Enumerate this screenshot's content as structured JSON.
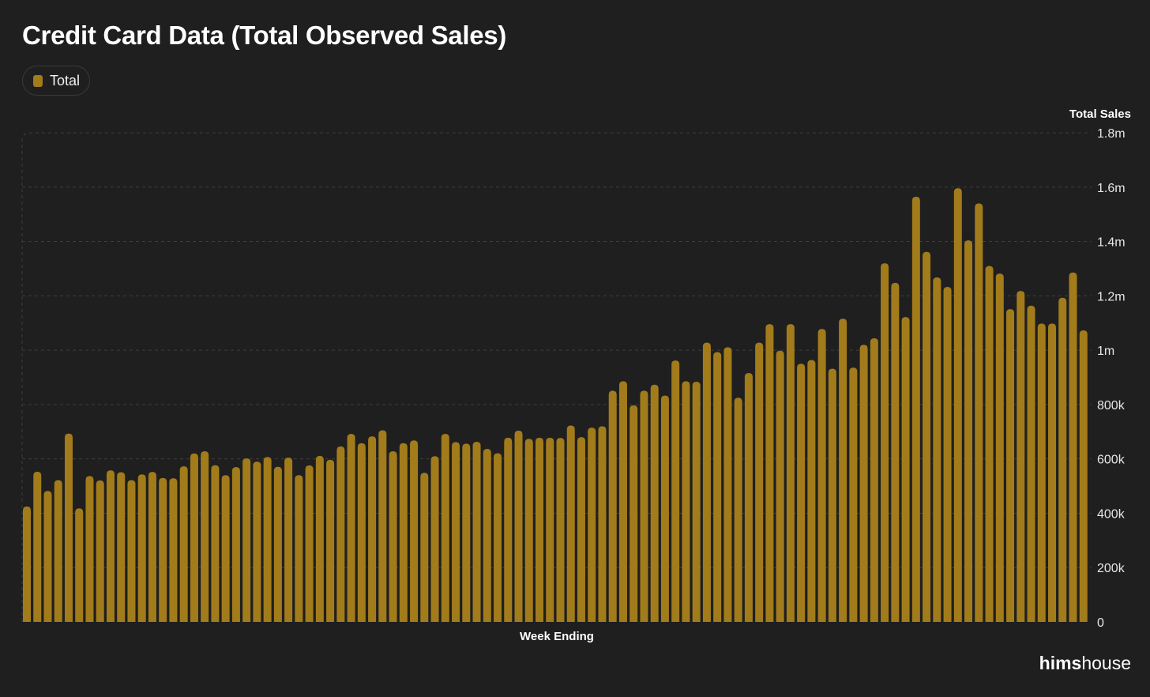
{
  "title": "Credit Card Data (Total Observed Sales)",
  "legend": [
    {
      "label": "Total",
      "color": "#a27b1b"
    }
  ],
  "brand": {
    "bold": "hims",
    "light": "house"
  },
  "chart_data": {
    "type": "bar",
    "title": "Credit Card Data (Total Observed Sales)",
    "xlabel": "Week Ending",
    "ylabel": "Total Sales",
    "ylim": [
      0,
      1800000
    ],
    "y_ticks": [
      {
        "value": 0,
        "label": "0"
      },
      {
        "value": 200000,
        "label": "200k"
      },
      {
        "value": 400000,
        "label": "400k"
      },
      {
        "value": 600000,
        "label": "600k"
      },
      {
        "value": 800000,
        "label": "800k"
      },
      {
        "value": 1000000,
        "label": "1m"
      },
      {
        "value": 1200000,
        "label": "1.2m"
      },
      {
        "value": 1400000,
        "label": "1.4m"
      },
      {
        "value": 1600000,
        "label": "1.6m"
      },
      {
        "value": 1800000,
        "label": "1.8m"
      }
    ],
    "grid": true,
    "legend_position": "top-left",
    "series": [
      {
        "name": "Total",
        "color": "#a27b1b",
        "values": [
          425000,
          553000,
          482000,
          522000,
          693000,
          418000,
          537000,
          521000,
          558000,
          551000,
          522000,
          543000,
          552000,
          530000,
          529000,
          573000,
          620000,
          628000,
          577000,
          540000,
          570000,
          602000,
          590000,
          607000,
          571000,
          605000,
          540000,
          576000,
          611000,
          597000,
          646000,
          692000,
          658000,
          683000,
          705000,
          628000,
          658000,
          668000,
          549000,
          610000,
          692000,
          662000,
          656000,
          663000,
          637000,
          621000,
          678000,
          704000,
          674000,
          678000,
          678000,
          677000,
          723000,
          680000,
          715000,
          720000,
          851000,
          886000,
          797000,
          851000,
          873000,
          833000,
          962000,
          886000,
          884000,
          1028000,
          993000,
          1011000,
          825000,
          916000,
          1028000,
          1096000,
          998000,
          1096000,
          950000,
          964000,
          1078000,
          932000,
          1116000,
          936000,
          1020000,
          1044000,
          1320000,
          1248000,
          1122000,
          1565000,
          1362000,
          1268000,
          1233000,
          1596000,
          1404000,
          1540000,
          1310000,
          1282000,
          1151000,
          1218000,
          1164000,
          1098000,
          1098000,
          1193000,
          1286000,
          1073000
        ]
      }
    ]
  }
}
